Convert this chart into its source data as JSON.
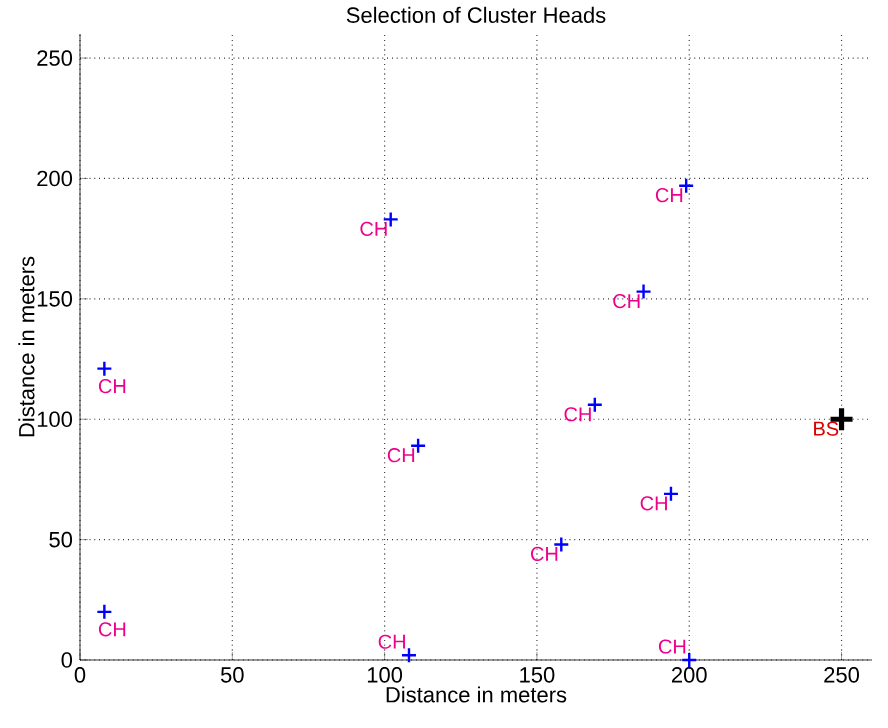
{
  "chart_data": {
    "type": "scatter",
    "title": "Selection of Cluster Heads",
    "xlabel": "Distance in meters",
    "ylabel": "Distance in meters",
    "xlim": [
      0,
      260
    ],
    "ylim": [
      0,
      260
    ],
    "xticks": [
      0,
      50,
      100,
      150,
      200,
      250
    ],
    "yticks": [
      0,
      50,
      100,
      150,
      200,
      250
    ],
    "grid": true,
    "marker": "cross",
    "series": [
      {
        "color": "#0000ff",
        "x": [
          8,
          8,
          102,
          108,
          111,
          158,
          169,
          185,
          194,
          199,
          200
        ],
        "values": [
          20,
          121,
          183,
          2,
          89,
          48,
          106,
          153,
          69,
          197,
          0
        ],
        "value_labels": [
          "CH",
          "CH",
          "CH",
          "CH",
          "CH",
          "CH",
          "CH",
          "CH",
          "CH",
          "CH",
          "CH"
        ]
      },
      {
        "color": "#000000",
        "x": [
          250
        ],
        "values": [
          100
        ],
        "value_labels": [
          "BS"
        ]
      }
    ]
  }
}
